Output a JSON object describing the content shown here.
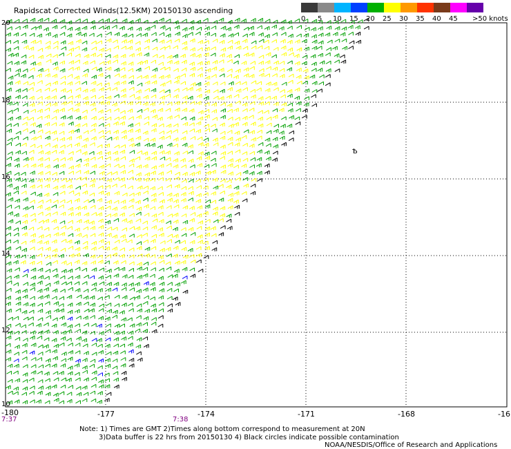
{
  "title": "Rapidscat Corrected Winds(12.5KM) 20150130 ascending",
  "colorbar": {
    "labels": [
      "0",
      "5",
      "10",
      "15",
      "20",
      "25",
      "30",
      "35",
      "40",
      "45",
      ">50 knots"
    ],
    "colors": [
      "#3a3a3a",
      "#8a8a8a",
      "#00b4ff",
      "#0040ff",
      "#00b000",
      "#ffff00",
      "#ff9900",
      "#ff3300",
      "#7a3a1a",
      "#ff00ff",
      "#6600aa"
    ]
  },
  "axes": {
    "x_ticks": [
      "-180",
      "-177",
      "-174",
      "-171",
      "-168",
      "-16"
    ],
    "y_ticks": [
      "20",
      "18",
      "16",
      "14",
      "12",
      "10"
    ]
  },
  "times": [
    "7:37",
    "7:38"
  ],
  "annotation": "Ѣ",
  "notes": [
    "Note: 1) Times are GMT 2)Times along bottom correspond to measurement at 20N",
    "3)Data buffer is 22 hrs from 20150130 4) Black circles indicate possible contamination",
    "NOAA/NESDIS/Office of Research and Applications"
  ],
  "colors": {
    "green": "#00a000",
    "yellow": "#ffff00",
    "black": "#000000",
    "blue": "#0000ff",
    "grid": "#000000"
  }
}
